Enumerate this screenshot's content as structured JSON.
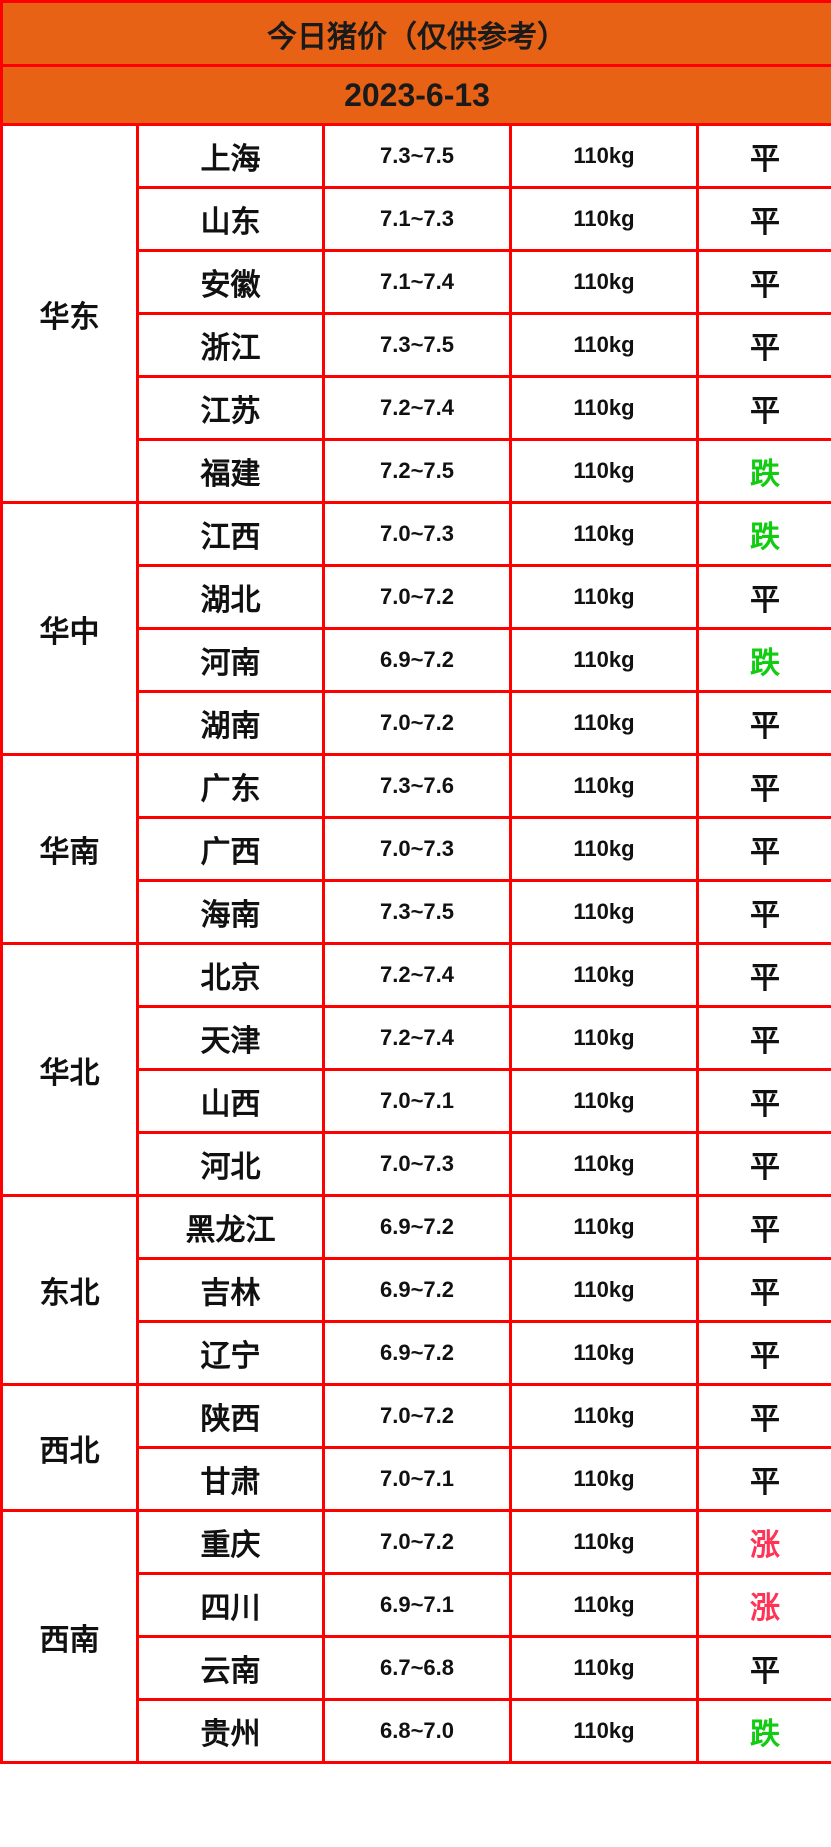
{
  "title": "今日猪价（仅供参考）",
  "date": "2023-6-13",
  "colors": {
    "header_bg": "#e86216",
    "border": "#ff0000",
    "up": "#ff3355",
    "down": "#11cc11",
    "flat": "#111111"
  },
  "regions": [
    {
      "name": "华东",
      "rows": [
        {
          "province": "上海",
          "price": "7.3~7.5",
          "weight": "110kg",
          "trend": "平"
        },
        {
          "province": "山东",
          "price": "7.1~7.3",
          "weight": "110kg",
          "trend": "平"
        },
        {
          "province": "安徽",
          "price": "7.1~7.4",
          "weight": "110kg",
          "trend": "平"
        },
        {
          "province": "浙江",
          "price": "7.3~7.5",
          "weight": "110kg",
          "trend": "平"
        },
        {
          "province": "江苏",
          "price": "7.2~7.4",
          "weight": "110kg",
          "trend": "平"
        },
        {
          "province": "福建",
          "price": "7.2~7.5",
          "weight": "110kg",
          "trend": "跌"
        }
      ]
    },
    {
      "name": "华中",
      "rows": [
        {
          "province": "江西",
          "price": "7.0~7.3",
          "weight": "110kg",
          "trend": "跌"
        },
        {
          "province": "湖北",
          "price": "7.0~7.2",
          "weight": "110kg",
          "trend": "平"
        },
        {
          "province": "河南",
          "price": "6.9~7.2",
          "weight": "110kg",
          "trend": "跌"
        },
        {
          "province": "湖南",
          "price": "7.0~7.2",
          "weight": "110kg",
          "trend": "平"
        }
      ]
    },
    {
      "name": "华南",
      "rows": [
        {
          "province": "广东",
          "price": "7.3~7.6",
          "weight": "110kg",
          "trend": "平"
        },
        {
          "province": "广西",
          "price": "7.0~7.3",
          "weight": "110kg",
          "trend": "平"
        },
        {
          "province": "海南",
          "price": "7.3~7.5",
          "weight": "110kg",
          "trend": "平"
        }
      ]
    },
    {
      "name": "华北",
      "rows": [
        {
          "province": "北京",
          "price": "7.2~7.4",
          "weight": "110kg",
          "trend": "平"
        },
        {
          "province": "天津",
          "price": "7.2~7.4",
          "weight": "110kg",
          "trend": "平"
        },
        {
          "province": "山西",
          "price": "7.0~7.1",
          "weight": "110kg",
          "trend": "平"
        },
        {
          "province": "河北",
          "price": "7.0~7.3",
          "weight": "110kg",
          "trend": "平"
        }
      ]
    },
    {
      "name": "东北",
      "rows": [
        {
          "province": "黑龙江",
          "price": "6.9~7.2",
          "weight": "110kg",
          "trend": "平"
        },
        {
          "province": "吉林",
          "price": "6.9~7.2",
          "weight": "110kg",
          "trend": "平"
        },
        {
          "province": "辽宁",
          "price": "6.9~7.2",
          "weight": "110kg",
          "trend": "平"
        }
      ]
    },
    {
      "name": "西北",
      "rows": [
        {
          "province": "陕西",
          "price": "7.0~7.2",
          "weight": "110kg",
          "trend": "平"
        },
        {
          "province": "甘肃",
          "price": "7.0~7.1",
          "weight": "110kg",
          "trend": "平"
        }
      ]
    },
    {
      "name": "西南",
      "rows": [
        {
          "province": "重庆",
          "price": "7.0~7.2",
          "weight": "110kg",
          "trend": "涨"
        },
        {
          "province": "四川",
          "price": "6.9~7.1",
          "weight": "110kg",
          "trend": "涨"
        },
        {
          "province": "云南",
          "price": "6.7~6.8",
          "weight": "110kg",
          "trend": "平"
        },
        {
          "province": "贵州",
          "price": "6.8~7.0",
          "weight": "110kg",
          "trend": "跌"
        }
      ]
    }
  ]
}
